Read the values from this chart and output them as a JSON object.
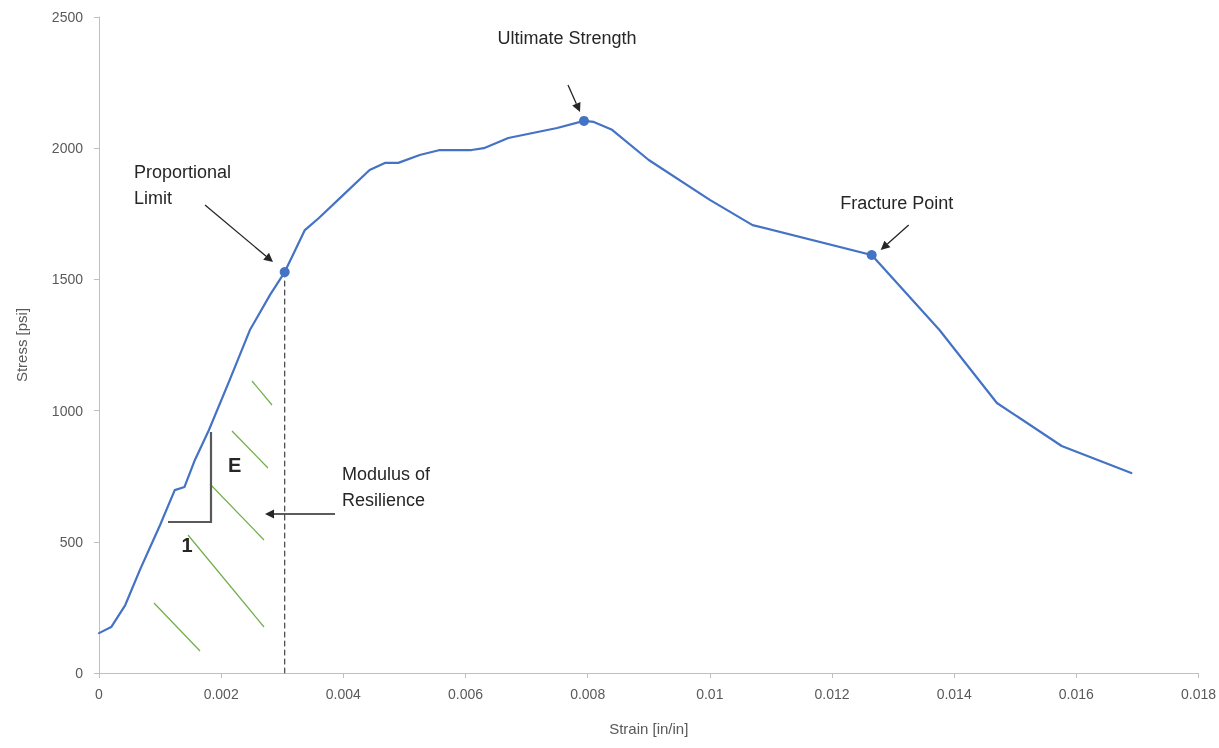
{
  "chart_data": {
    "type": "line",
    "xlabel": "Strain [in/in]",
    "ylabel": "Stress [psi]",
    "xlim": [
      0,
      0.018
    ],
    "xticks": [
      0,
      0.002,
      0.004,
      0.006,
      0.008,
      0.01,
      0.012,
      0.014,
      0.016,
      0.018
    ],
    "ylim": [
      0,
      2500
    ],
    "yticks": [
      0,
      500,
      1000,
      1500,
      2000,
      2500
    ],
    "grid": false,
    "marker": "none",
    "line_style": "solid",
    "series": [
      {
        "color": "#4472c4",
        "x": [
          0,
          0.0002,
          0.00043,
          0.00067,
          0.001,
          0.00124,
          0.0014,
          0.00157,
          0.0018,
          0.00214,
          0.00247,
          0.0028,
          0.00304,
          0.00337,
          0.0036,
          0.004,
          0.00443,
          0.00468,
          0.0049,
          0.00525,
          0.00558,
          0.0061,
          0.0063,
          0.0067,
          0.0075,
          0.00794,
          0.0081,
          0.0084,
          0.009,
          0.01,
          0.0107,
          0.01265,
          0.01376,
          0.0147,
          0.01576,
          0.0169
        ],
        "values": [
          152,
          175,
          259,
          393,
          564,
          697,
          709,
          812,
          926,
          1117,
          1307,
          1441,
          1528,
          1688,
          1734,
          1822,
          1917,
          1944,
          1944,
          1974,
          1993,
          1993,
          2000,
          2039,
          2077,
          2104,
          2100,
          2070,
          1955,
          1803,
          1707,
          1593,
          1307,
          1029,
          865,
          762
        ]
      },
      {
        "type": "scatter",
        "marker": "circle",
        "color": "#4472c4",
        "x": [
          0.00304,
          0.00794,
          0.01265
        ],
        "values": [
          1528,
          2104,
          1593
        ]
      },
      {
        "type": "line",
        "color": "#404040",
        "line_style": "dashed",
        "x": [
          0.00304,
          0.00304
        ],
        "values": [
          0,
          1528
        ]
      }
    ],
    "annotations": [
      "Ultimate Strength",
      {
        "text": "Fracture Point",
        "x": 0.01265,
        "y": 1593
      },
      "Proportional Limit",
      "Modulus of Resilience",
      "E",
      {
        "text": "1",
        "x": 0.00105,
        "y": 592
      }
    ]
  }
}
